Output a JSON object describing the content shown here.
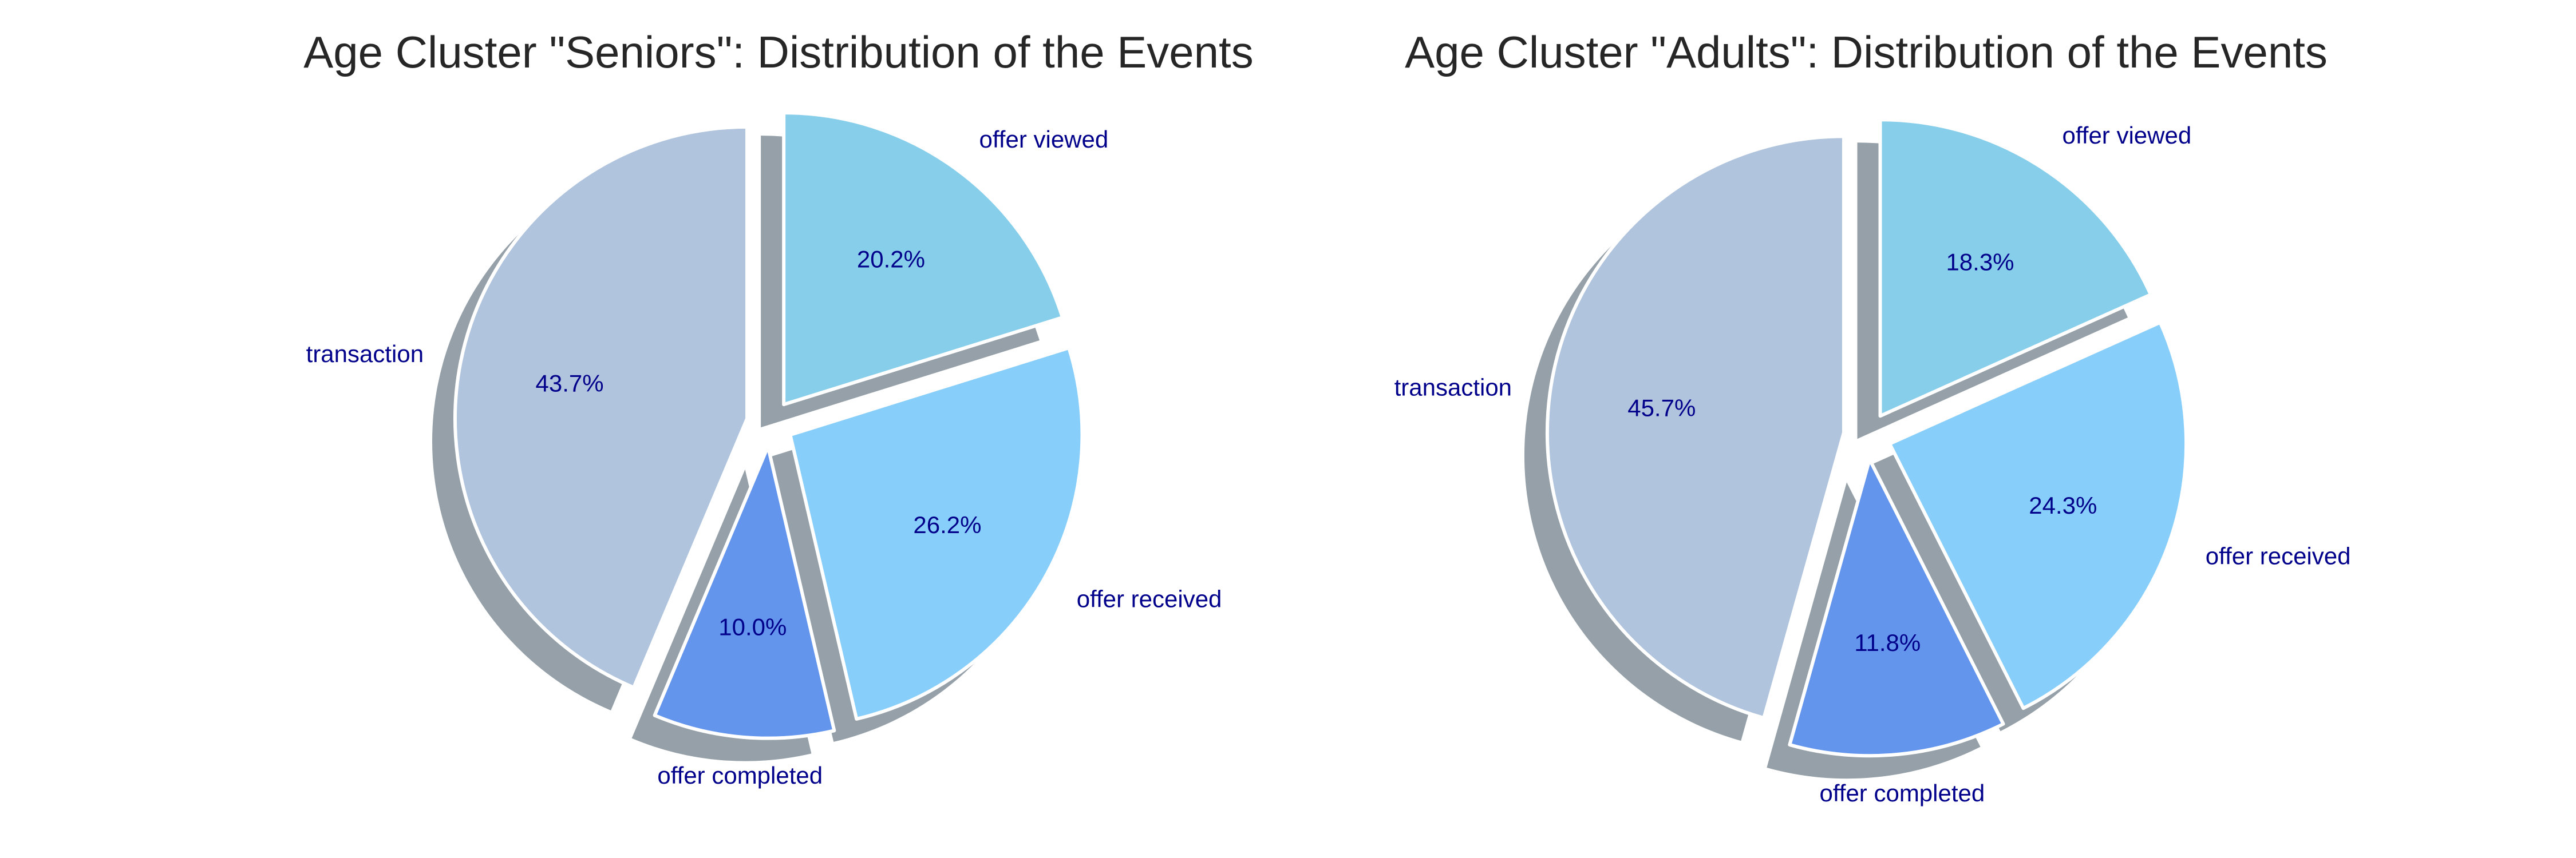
{
  "chart_data": [
    {
      "type": "pie",
      "title": "Age Cluster \"Seniors\": Distribution of the Events",
      "labels": [
        "transaction",
        "offer completed",
        "offer received",
        "offer viewed"
      ],
      "values": [
        43.7,
        10.0,
        26.2,
        20.2
      ],
      "percent_labels": [
        "43.7%",
        "10.0%",
        "26.2%",
        "20.2%"
      ],
      "colors": [
        "#b0c4de",
        "#6495ed",
        "#87cefa",
        "#87ceeb"
      ],
      "start_angle_deg": 90,
      "direction": "counterclockwise",
      "exploded": true,
      "shadow": true
    },
    {
      "type": "pie",
      "title": "Age Cluster \"Adults\": Distribution of the Events",
      "labels": [
        "transaction",
        "offer completed",
        "offer received",
        "offer viewed"
      ],
      "values": [
        45.7,
        11.8,
        24.3,
        18.3
      ],
      "percent_labels": [
        "45.7%",
        "11.8%",
        "24.3%",
        "18.3%"
      ],
      "colors": [
        "#b0c4de",
        "#6495ed",
        "#87cefa",
        "#87ceeb"
      ],
      "start_angle_deg": 90,
      "direction": "counterclockwise",
      "exploded": true,
      "shadow": true
    }
  ],
  "style": {
    "label_color": "#00008b",
    "title_color": "#262626",
    "shadow_color": "#95a0a8",
    "edge_color": "#ffffff"
  }
}
